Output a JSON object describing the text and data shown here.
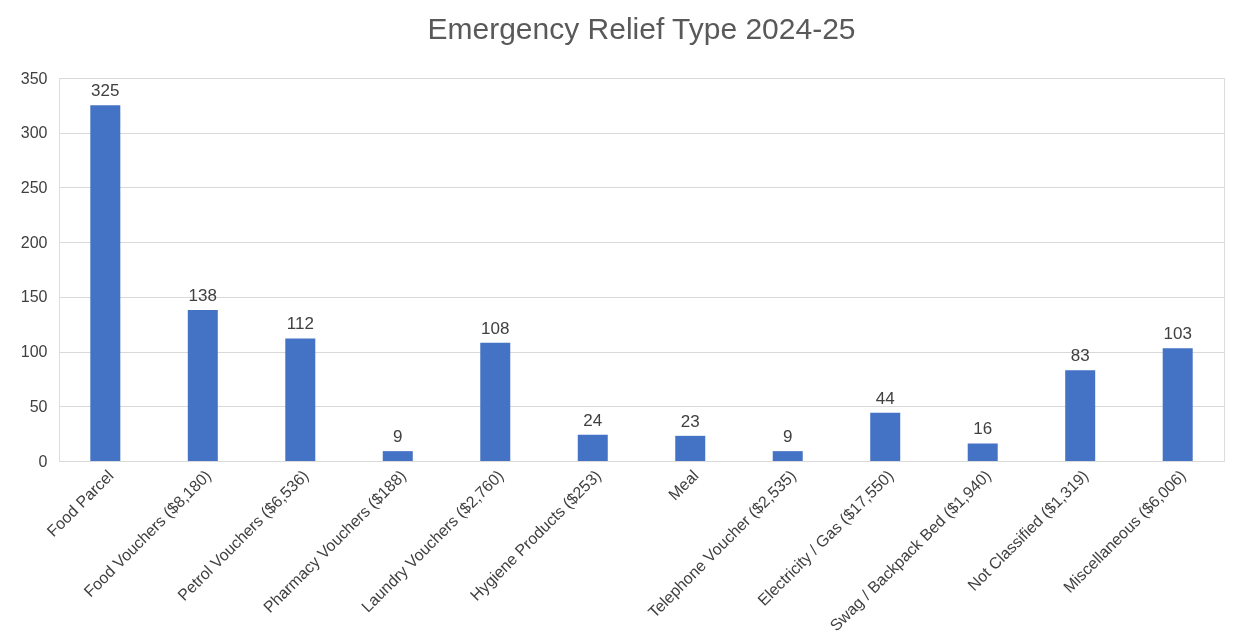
{
  "chart_data": {
    "type": "bar",
    "title": "Emergency Relief Type 2024-25",
    "categories": [
      "Food Parcel",
      "Food Vouchers ($8,180)",
      "Petrol Vouchers ($6,536)",
      "Pharmacy Vouchers ($188)",
      "Laundry Vouchers ($2,760)",
      "Hygiene Products ($253)",
      "Meal",
      "Telephone Voucher ($2,535)",
      "Electricity / Gas ($17,550)",
      "Swag / Backpack Bed ($1,940)",
      "Not Classified ($1,319)",
      "Miscellaneous ($6,006)"
    ],
    "values": [
      325,
      138,
      112,
      9,
      108,
      24,
      23,
      9,
      44,
      16,
      83,
      103
    ],
    "color": "#4472c4",
    "ylim": [
      0,
      350
    ],
    "yticks": [
      0,
      50,
      100,
      150,
      200,
      250,
      300,
      350
    ],
    "grid": "y",
    "data_labels": true
  }
}
